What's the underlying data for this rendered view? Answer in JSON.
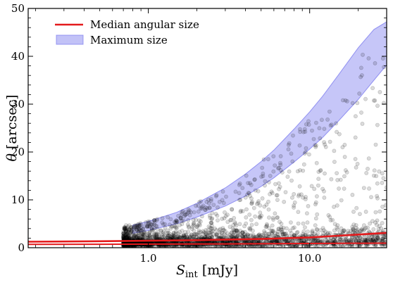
{
  "chart_data": {
    "type": "scatter",
    "title": "",
    "xlabel": "S_int [mJy]",
    "xlabel_main": "S",
    "xlabel_sub": "int",
    "xlabel_unit": " [mJy]",
    "ylabel": "θ [arcsec]",
    "ylabel_symbol": "θ",
    "ylabel_unit": " [arcsec]",
    "xscale": "log",
    "xlim": [
      0.18,
      30
    ],
    "ylim": [
      0,
      50
    ],
    "xticks": [
      {
        "value": 1.0,
        "label": "1.0"
      },
      {
        "value": 10.0,
        "label": "10.0"
      }
    ],
    "yticks": [
      {
        "value": 0,
        "label": "0"
      },
      {
        "value": 10,
        "label": "10"
      },
      {
        "value": 20,
        "label": "20"
      },
      {
        "value": 30,
        "label": "30"
      },
      {
        "value": 40,
        "label": "40"
      },
      {
        "value": 50,
        "label": "50"
      }
    ],
    "grid": false,
    "legend_position": "top-left",
    "series": [
      {
        "name": "Median angular size",
        "kind": "line",
        "color": "#e31a1c",
        "x": [
          0.18,
          0.3,
          0.5,
          0.8,
          1.0,
          2.0,
          3.0,
          5.0,
          8.0,
          10.0,
          15.0,
          20.0,
          30.0
        ],
        "y": [
          1.25,
          1.3,
          1.35,
          1.42,
          1.45,
          1.58,
          1.68,
          1.82,
          2.05,
          2.15,
          2.5,
          2.75,
          3.1
        ]
      },
      {
        "name": "Median angular size (lower)",
        "kind": "line",
        "color": "#e31a1c",
        "x": [
          0.18,
          0.5,
          1.0,
          3.0,
          10.0,
          30.0
        ],
        "y": [
          0.7,
          0.72,
          0.75,
          0.8,
          0.88,
          0.95
        ]
      },
      {
        "name": "Maximum size",
        "kind": "band",
        "color": "#7777ee",
        "x": [
          0.8,
          1.0,
          1.5,
          2.0,
          3.0,
          4.0,
          5.0,
          6.0,
          8.0,
          10.0,
          12.0,
          15.0,
          20.0,
          25.0,
          30.0
        ],
        "y_low": [
          3.0,
          3.6,
          5.0,
          6.4,
          8.7,
          10.8,
          12.8,
          14.6,
          17.9,
          20.6,
          23.0,
          26.4,
          31.0,
          35.0,
          38.2
        ],
        "y_high": [
          4.7,
          5.5,
          7.4,
          9.3,
          12.5,
          15.4,
          18.0,
          20.4,
          24.8,
          28.4,
          31.6,
          36.0,
          41.8,
          45.6,
          47.2
        ]
      }
    ],
    "scatter": {
      "name": "Sources",
      "color": "#000000",
      "opacity": 0.14,
      "count": 2600,
      "x_range": [
        0.7,
        30
      ],
      "y_range": [
        0,
        41
      ]
    }
  },
  "legend": {
    "items": [
      {
        "label": "Median angular size",
        "color": "#e31a1c",
        "kind": "line"
      },
      {
        "label": "Maximum size",
        "color": "#7777ee",
        "kind": "band"
      }
    ]
  }
}
